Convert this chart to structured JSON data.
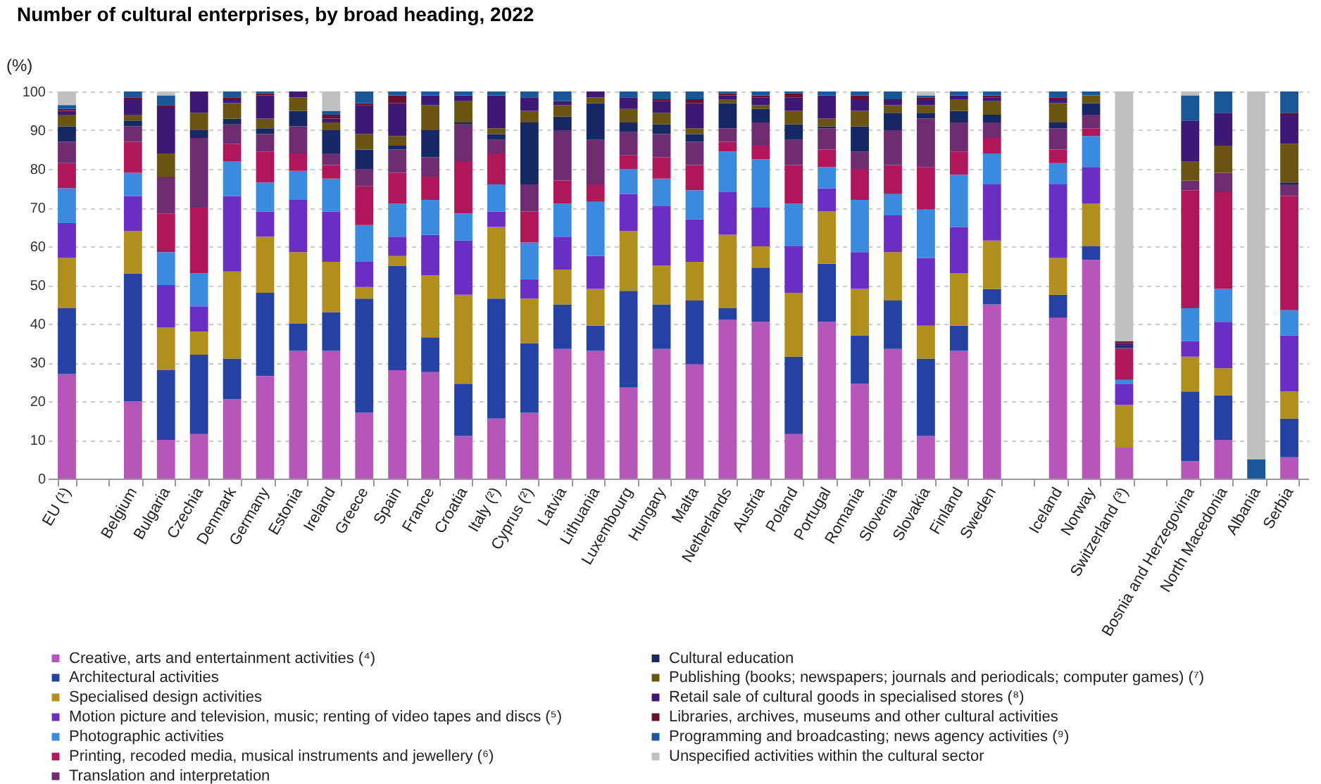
{
  "chart_data": {
    "type": "bar",
    "title": "Number of cultural enterprises, by broad heading, 2022",
    "ylabel": "(%)",
    "stacked": true,
    "grid": "y",
    "legend": "bottom",
    "ylim": [
      0,
      100
    ],
    "yticks": [
      0,
      10,
      20,
      30,
      40,
      50,
      60,
      70,
      80,
      90,
      100
    ],
    "categories": [
      "EU (¹)",
      null,
      "Belgium",
      "Bulgaria",
      "Czechia",
      "Denmark",
      "Germany",
      "Estonia",
      "Ireland",
      "Greece",
      "Spain",
      "France",
      "Croatia",
      "Italy (²)",
      "Cyprus (²)",
      "Latvia",
      "Lithuania",
      "Luxembourg",
      "Hungary",
      "Malta",
      "Netherlands",
      "Austria",
      "Poland",
      "Portugal",
      "Romania",
      "Slovenia",
      "Slovakia",
      "Finland",
      "Sweden",
      null,
      "Iceland",
      "Norway",
      "Switzerland (³)",
      null,
      "Bosnia and Herzegovina",
      "North Macedonia",
      "Albania",
      "Serbia"
    ],
    "series": [
      {
        "name": "Creative, arts and entertainment activities (⁴)",
        "color": "#b656b9",
        "values": [
          27,
          null,
          20,
          10,
          11.5,
          20.5,
          26.5,
          33,
          33,
          17,
          28,
          27.5,
          11,
          15.5,
          17,
          33.5,
          33,
          23.5,
          33.5,
          29.5,
          41,
          40.5,
          11.5,
          40.5,
          24.5,
          33.5,
          11,
          33,
          45,
          null,
          41.5,
          56.5,
          8,
          null,
          4.5,
          10,
          null,
          5.5
        ]
      },
      {
        "name": "Architectural activities",
        "color": "#2541a4",
        "values": [
          17,
          null,
          33,
          18,
          20.5,
          10.5,
          21.5,
          7,
          10,
          29.5,
          27,
          9,
          13.5,
          31,
          18,
          11.5,
          6.5,
          25,
          11.5,
          16.5,
          3,
          14,
          20,
          15,
          12.5,
          12.5,
          20,
          6.5,
          4,
          null,
          6,
          3.5,
          null,
          null,
          18,
          11.5,
          null,
          10
        ]
      },
      {
        "name": "Specialised design activities",
        "color": "#b08f1f",
        "values": [
          13,
          null,
          11,
          11,
          6,
          22.5,
          14.5,
          18.5,
          13,
          3,
          2.5,
          16,
          23,
          18.5,
          11.5,
          9,
          9.5,
          15.5,
          10,
          10,
          19,
          5.5,
          16.5,
          13.5,
          12,
          12.5,
          8.5,
          13.5,
          12.5,
          null,
          9.5,
          11,
          11,
          null,
          9,
          7,
          null,
          7
        ]
      },
      {
        "name": "Motion picture and television, music; renting of video tapes and discs (⁵)",
        "color": "#6a2ec4",
        "values": [
          9,
          null,
          9,
          11,
          6.5,
          19.5,
          6.5,
          13.5,
          13,
          6.5,
          5,
          10.5,
          14,
          4,
          5,
          8.5,
          8.5,
          9.5,
          15.5,
          11,
          11,
          10,
          12,
          6,
          9.5,
          9.5,
          17.5,
          12,
          14.5,
          null,
          19,
          9.5,
          5.5,
          null,
          4,
          12,
          null,
          14.5
        ]
      },
      {
        "name": "Photographic activities",
        "color": "#3a8be0",
        "values": [
          9,
          null,
          6,
          8.5,
          8.5,
          9,
          7.5,
          7.5,
          8.5,
          9.5,
          8.5,
          9,
          7,
          7,
          9.5,
          8.5,
          14,
          6.5,
          7,
          7.5,
          10.5,
          12.5,
          11,
          5.5,
          13.5,
          5.5,
          12.5,
          13.5,
          8,
          null,
          5.5,
          8,
          1,
          null,
          8.5,
          8.5,
          null,
          6.5
        ]
      },
      {
        "name": "Printing, recoded media, musical instruments and jewellery (⁶)",
        "color": "#b0175a",
        "values": [
          6.5,
          null,
          8,
          10,
          17,
          4.5,
          8,
          4.5,
          3.5,
          10,
          8,
          6,
          13.5,
          8,
          8,
          6,
          4.5,
          3.5,
          5.5,
          6.5,
          2.5,
          3.5,
          10,
          4.5,
          8,
          7.5,
          11,
          6,
          4,
          null,
          3.5,
          2,
          8,
          null,
          30.5,
          25,
          null,
          29.5
        ]
      },
      {
        "name": "Translation and interpretation",
        "color": "#702c70",
        "values": [
          5.5,
          null,
          4,
          9.5,
          18,
          5,
          4.5,
          7,
          3,
          4.5,
          6,
          5,
          9.5,
          3.5,
          7,
          13,
          11.5,
          6,
          6,
          6,
          3.5,
          6,
          6.5,
          5.5,
          4.5,
          9,
          12.5,
          7.5,
          4,
          null,
          5.5,
          3.5,
          0.5,
          null,
          2.5,
          5,
          null,
          3
        ]
      },
      {
        "name": "Cultural education",
        "color": "#162863",
        "values": [
          4,
          null,
          1.5,
          null,
          2,
          1.5,
          1.5,
          4,
          6,
          5,
          1,
          7,
          0.5,
          1.5,
          16,
          3.5,
          9.5,
          2.5,
          2.5,
          2,
          6.5,
          3.5,
          4,
          0.5,
          6.5,
          4.5,
          1.5,
          3,
          2,
          null,
          1.5,
          3,
          0.5,
          null,
          null,
          null,
          null,
          0.5
        ]
      },
      {
        "name": "Publishing (books; newspapers; journals and periodicals; computer games) (⁷)",
        "color": "#6a5412",
        "values": [
          3,
          null,
          1.5,
          6,
          4.5,
          4,
          2.5,
          3.5,
          2,
          4,
          2.5,
          6.5,
          5.5,
          1.5,
          3,
          3,
          1.5,
          3.5,
          3,
          1.5,
          1,
          1,
          3.5,
          2,
          4,
          2,
          2,
          3,
          3.5,
          null,
          5,
          2,
          null,
          null,
          5,
          7,
          null,
          10
        ]
      },
      {
        "name": "Retail sale of cultural goods in specialised stores (⁸)",
        "color": "#3f1775",
        "values": [
          1,
          null,
          4,
          12,
          5.5,
          1,
          6,
          1.5,
          1,
          7.5,
          8.5,
          2.5,
          1.5,
          8.5,
          3.5,
          1,
          1.5,
          3,
          3,
          6.5,
          1,
          2,
          3.5,
          6,
          3,
          1.5,
          1.5,
          1,
          1,
          null,
          1,
          null,
          0.5,
          null,
          10.5,
          8.5,
          null,
          7.5
        ]
      },
      {
        "name": "Libraries, archives, museums and other cultural activities",
        "color": "#6b0f2e",
        "values": [
          0.5,
          null,
          0.5,
          0.5,
          null,
          0.5,
          0.5,
          null,
          1,
          0.5,
          2,
          null,
          null,
          null,
          null,
          null,
          null,
          null,
          0.5,
          1,
          0.5,
          0.5,
          1,
          null,
          1,
          null,
          0.5,
          null,
          0.5,
          null,
          0.5,
          null,
          0.5,
          null,
          null,
          null,
          null,
          0.5
        ]
      },
      {
        "name": "Programming and broadcasting; news agency activities (⁹)",
        "color": "#1a5798",
        "values": [
          1,
          null,
          1.5,
          2.5,
          null,
          1.5,
          0.5,
          null,
          1,
          3,
          1,
          1,
          1,
          1,
          1.5,
          2.5,
          null,
          1.5,
          2,
          2,
          0.5,
          1,
          0.5,
          1,
          1,
          2,
          0.5,
          1,
          1,
          null,
          1.5,
          1,
          null,
          null,
          6.5,
          5.5,
          5,
          5.5
        ]
      },
      {
        "name": "Unspecified activities within the cultural sector",
        "color": "#c0c0c0",
        "values": [
          3.5,
          null,
          null,
          1,
          null,
          null,
          null,
          null,
          5,
          null,
          null,
          null,
          null,
          null,
          null,
          null,
          null,
          null,
          null,
          null,
          null,
          null,
          null,
          null,
          null,
          null,
          1,
          null,
          null,
          null,
          null,
          null,
          64.5,
          null,
          1,
          null,
          95,
          null
        ]
      }
    ]
  }
}
